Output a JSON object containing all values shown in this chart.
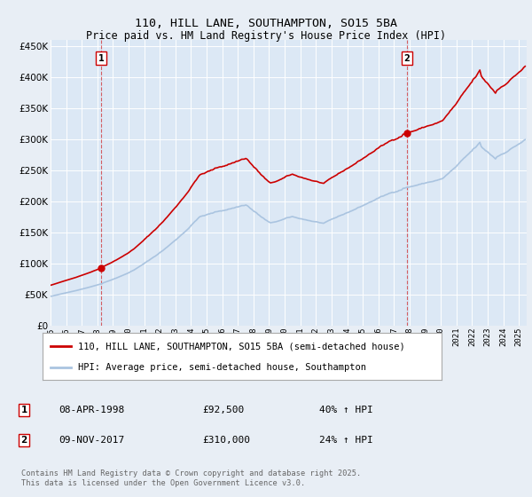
{
  "title1": "110, HILL LANE, SOUTHAMPTON, SO15 5BA",
  "title2": "Price paid vs. HM Land Registry's House Price Index (HPI)",
  "hpi_label": "HPI: Average price, semi-detached house, Southampton",
  "property_label": "110, HILL LANE, SOUTHAMPTON, SO15 5BA (semi-detached house)",
  "footnote": "Contains HM Land Registry data © Crown copyright and database right 2025.\nThis data is licensed under the Open Government Licence v3.0.",
  "sale1_date": "08-APR-1998",
  "sale1_price": 92500,
  "sale1_hpi": "40% ↑ HPI",
  "sale2_date": "09-NOV-2017",
  "sale2_price": 310000,
  "sale2_hpi": "24% ↑ HPI",
  "hpi_color": "#aac4e0",
  "property_color": "#cc0000",
  "sale_marker_color": "#cc0000",
  "vline_color": "#cc0000",
  "bg_color": "#e8eef5",
  "plot_bg_color": "#dce8f5",
  "grid_color": "#c8d8e8",
  "ymin": 0,
  "ymax": 460000,
  "xmin": 1995.0,
  "xmax": 2025.5
}
